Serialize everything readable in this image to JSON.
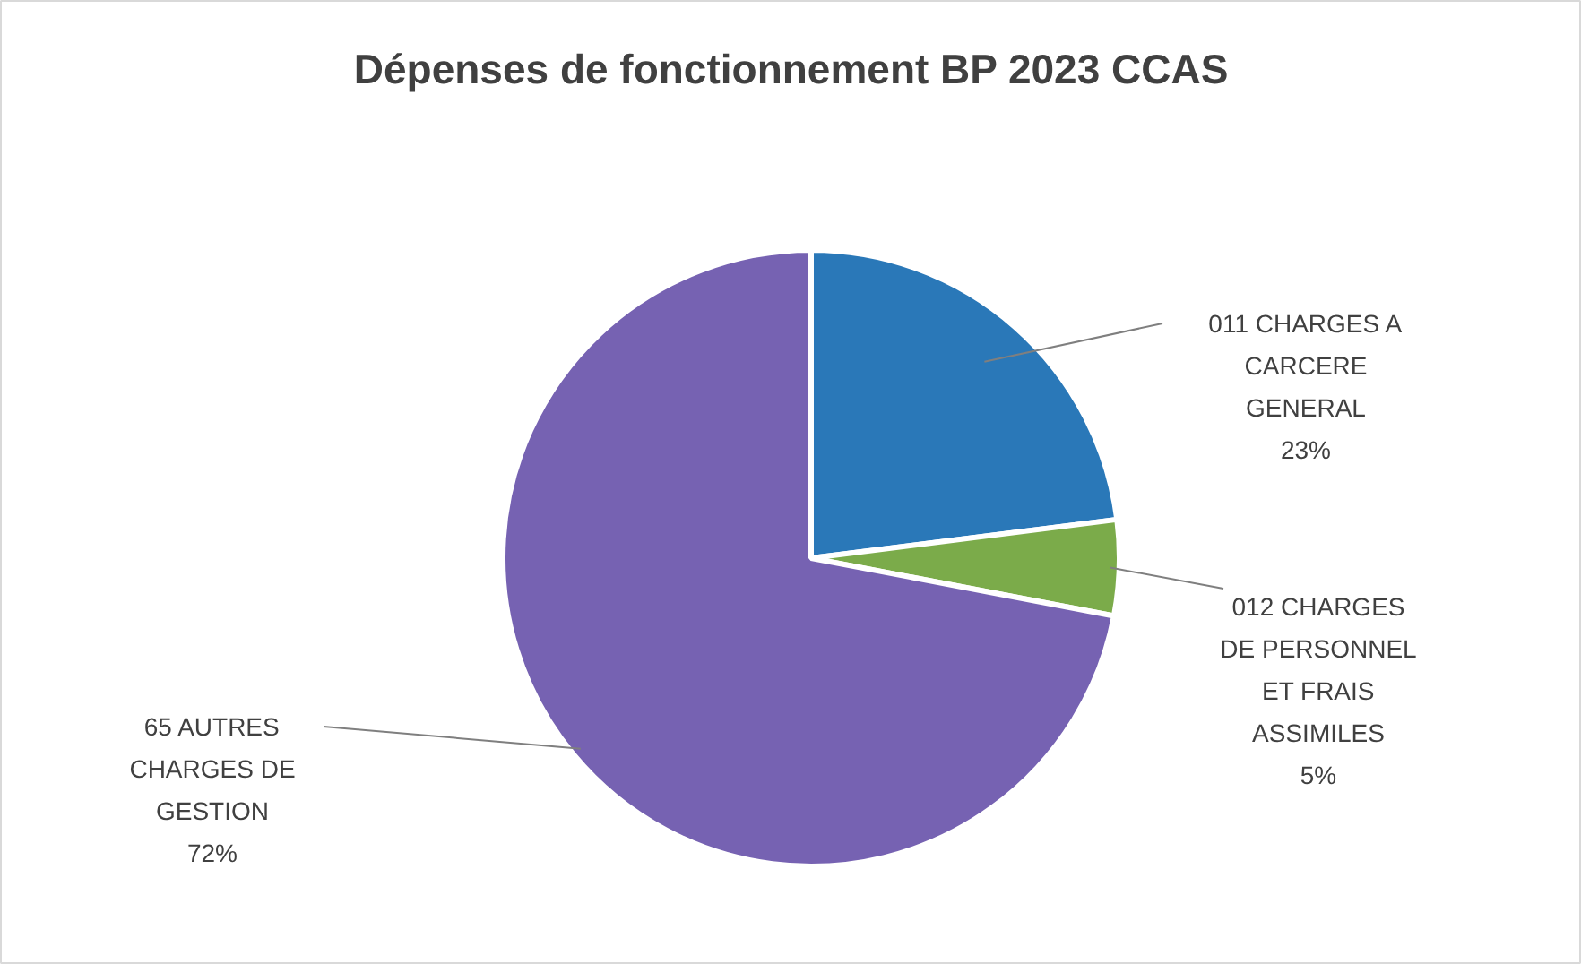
{
  "chart_data": {
    "type": "pie",
    "title": "Dépenses de fonctionnement BP 2023 CCAS",
    "categories": [
      "011 CHARGES A CARCERE GENERAL",
      "012 CHARGES DE PERSONNEL ET FRAIS ASSIMILES",
      "65 AUTRES CHARGES DE GESTION"
    ],
    "values": [
      23,
      5,
      72
    ],
    "value_labels": [
      "23%",
      "5%",
      "72%"
    ],
    "colors": [
      "#2a78b8",
      "#7bab4a",
      "#7662b2"
    ]
  }
}
